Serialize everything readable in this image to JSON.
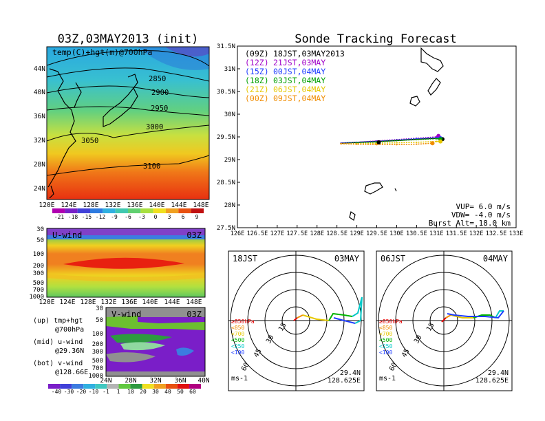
{
  "left_title": "03Z,03MAY2013 (init)",
  "right_title": "Sonde Tracking Forecast",
  "map_panel": {
    "label": "temp(C)+hgt(m)@700hPa",
    "lat_ticks": [
      "44N",
      "40N",
      "36N",
      "32N",
      "28N",
      "24N"
    ],
    "lon_ticks": [
      "120E",
      "124E",
      "128E",
      "132E",
      "136E",
      "140E",
      "144E",
      "148E"
    ],
    "contour_labels": [
      "2850",
      "2900",
      "2950",
      "3000",
      "3050",
      "3100"
    ],
    "colorbar_ticks": [
      "-21",
      "-18",
      "-15",
      "-12",
      "-9",
      "-6",
      "-3",
      "0",
      "3",
      "6",
      "9"
    ]
  },
  "u_panel": {
    "label": "U-wind",
    "time": "03Z",
    "p_ticks": [
      "30",
      "50",
      "100",
      "200",
      "300",
      "500",
      "700",
      "1000"
    ],
    "lon_ticks": [
      "120E",
      "124E",
      "128E",
      "132E",
      "136E",
      "140E",
      "144E",
      "148E"
    ]
  },
  "v_panel": {
    "label": "V-wind",
    "time": "03Z",
    "p_ticks": [
      "30",
      "50",
      "100",
      "200",
      "300",
      "500",
      "700",
      "1000"
    ],
    "lat_ticks": [
      "24N",
      "28N",
      "32N",
      "36N",
      "40N"
    ]
  },
  "v_colorbar_ticks": [
    "-40",
    "-30",
    "-20",
    "-10",
    "-1",
    "1",
    "10",
    "20",
    "30",
    "40",
    "50",
    "60"
  ],
  "legend_lines": [
    {
      "a": "(up) tmp+hgt",
      "b": "@700hPa"
    },
    {
      "a": "(mid) u-wind",
      "b": "@29.36N"
    },
    {
      "a": "(bot) v-wind",
      "b": "@128.66E"
    }
  ],
  "track_panel": {
    "lat_ticks": [
      "31.5N",
      "31N",
      "30.5N",
      "30N",
      "29.5N",
      "29N",
      "28.5N",
      "28N",
      "27.5N"
    ],
    "lon_ticks": [
      "126E",
      "126.5E",
      "127E",
      "127.5E",
      "128E",
      "128.5E",
      "129E",
      "129.5E",
      "130E",
      "130.5E",
      "131E",
      "131.5E",
      "132E",
      "132.5E",
      "133E"
    ],
    "launches": [
      {
        "utc": "(09Z)",
        "jst": "18JST,03MAY2013",
        "color": "#000000"
      },
      {
        "utc": "(12Z)",
        "jst": "21JST,03MAY",
        "color": "#a000c8"
      },
      {
        "utc": "(15Z)",
        "jst": "00JST,04MAY",
        "color": "#1e3cff"
      },
      {
        "utc": "(18Z)",
        "jst": "03JST,04MAY",
        "color": "#00a000"
      },
      {
        "utc": "(21Z)",
        "jst": "06JST,04MAY",
        "color": "#e6c800"
      },
      {
        "utc": "(00Z)",
        "jst": "09JST,04MAY",
        "color": "#f08c00"
      }
    ],
    "params": [
      "VUP= 6.0 m/s",
      "VDW= -4.0 m/s",
      "Burst Alt= 18.0 km"
    ]
  },
  "hodo_left": {
    "time": "18JST",
    "date": "03MAY",
    "lat": "29.4N",
    "lon": "128.625E"
  },
  "hodo_right": {
    "time": "06JST",
    "date": "04MAY",
    "lat": "29.4N",
    "lon": "128.625E"
  },
  "hodo_common": {
    "ring_labels": [
      "15",
      "30",
      "45",
      "60"
    ],
    "levels": [
      {
        "label": "≥850hPa",
        "color": "#e60000"
      },
      {
        "label": "<850",
        "color": "#f08c00"
      },
      {
        "label": "<700",
        "color": "#e6c800"
      },
      {
        "label": "<500",
        "color": "#00b400"
      },
      {
        "label": "<250",
        "color": "#00c8c8"
      },
      {
        "label": "<100",
        "color": "#1e3cff"
      }
    ],
    "unit": "ms-1"
  },
  "chart_data": [
    {
      "type": "line",
      "title": "Sonde Tracking Forecast",
      "xlim": [
        126,
        133
      ],
      "ylim": [
        27.5,
        31.5
      ],
      "series": [
        {
          "name": "(09Z) 18JST,03MAY2013",
          "color": "#000000",
          "x": [
            128.6,
            129.0,
            129.5,
            130.0,
            130.5,
            131.0,
            131.15
          ],
          "y": [
            29.36,
            29.38,
            29.4,
            29.42,
            29.45,
            29.47,
            29.45
          ]
        },
        {
          "name": "(12Z) 21JST,03MAY",
          "color": "#a000c8",
          "x": [
            128.6,
            129.0,
            129.5,
            130.0,
            130.5,
            131.0,
            131.05
          ],
          "y": [
            29.36,
            29.38,
            29.41,
            29.44,
            29.47,
            29.5,
            29.52
          ]
        },
        {
          "name": "(15Z) 00JST,04MAY",
          "color": "#1e3cff",
          "x": [
            128.6,
            129.0,
            129.5,
            130.0,
            130.5,
            131.0,
            131.1
          ],
          "y": [
            29.36,
            29.38,
            29.4,
            29.43,
            29.46,
            29.48,
            29.47
          ]
        },
        {
          "name": "(18Z) 03JST,04MAY",
          "color": "#00a000",
          "x": [
            128.6,
            129.0,
            129.5,
            130.0,
            130.5,
            131.0,
            131.1
          ],
          "y": [
            29.35,
            29.37,
            29.39,
            29.42,
            29.44,
            29.46,
            29.45
          ]
        },
        {
          "name": "(21Z) 06JST,04MAY",
          "color": "#e6c800",
          "x": [
            128.6,
            129.0,
            129.5,
            130.0,
            130.5,
            131.0,
            131.1
          ],
          "y": [
            29.35,
            29.35,
            29.36,
            29.37,
            29.38,
            29.4,
            29.4
          ]
        },
        {
          "name": "(00Z) 09JST,04MAY",
          "color": "#f08c00",
          "x": [
            128.6,
            129.0,
            129.5,
            130.0,
            130.5,
            130.9
          ],
          "y": [
            29.35,
            29.34,
            29.33,
            29.33,
            29.34,
            29.36
          ]
        }
      ]
    }
  ]
}
